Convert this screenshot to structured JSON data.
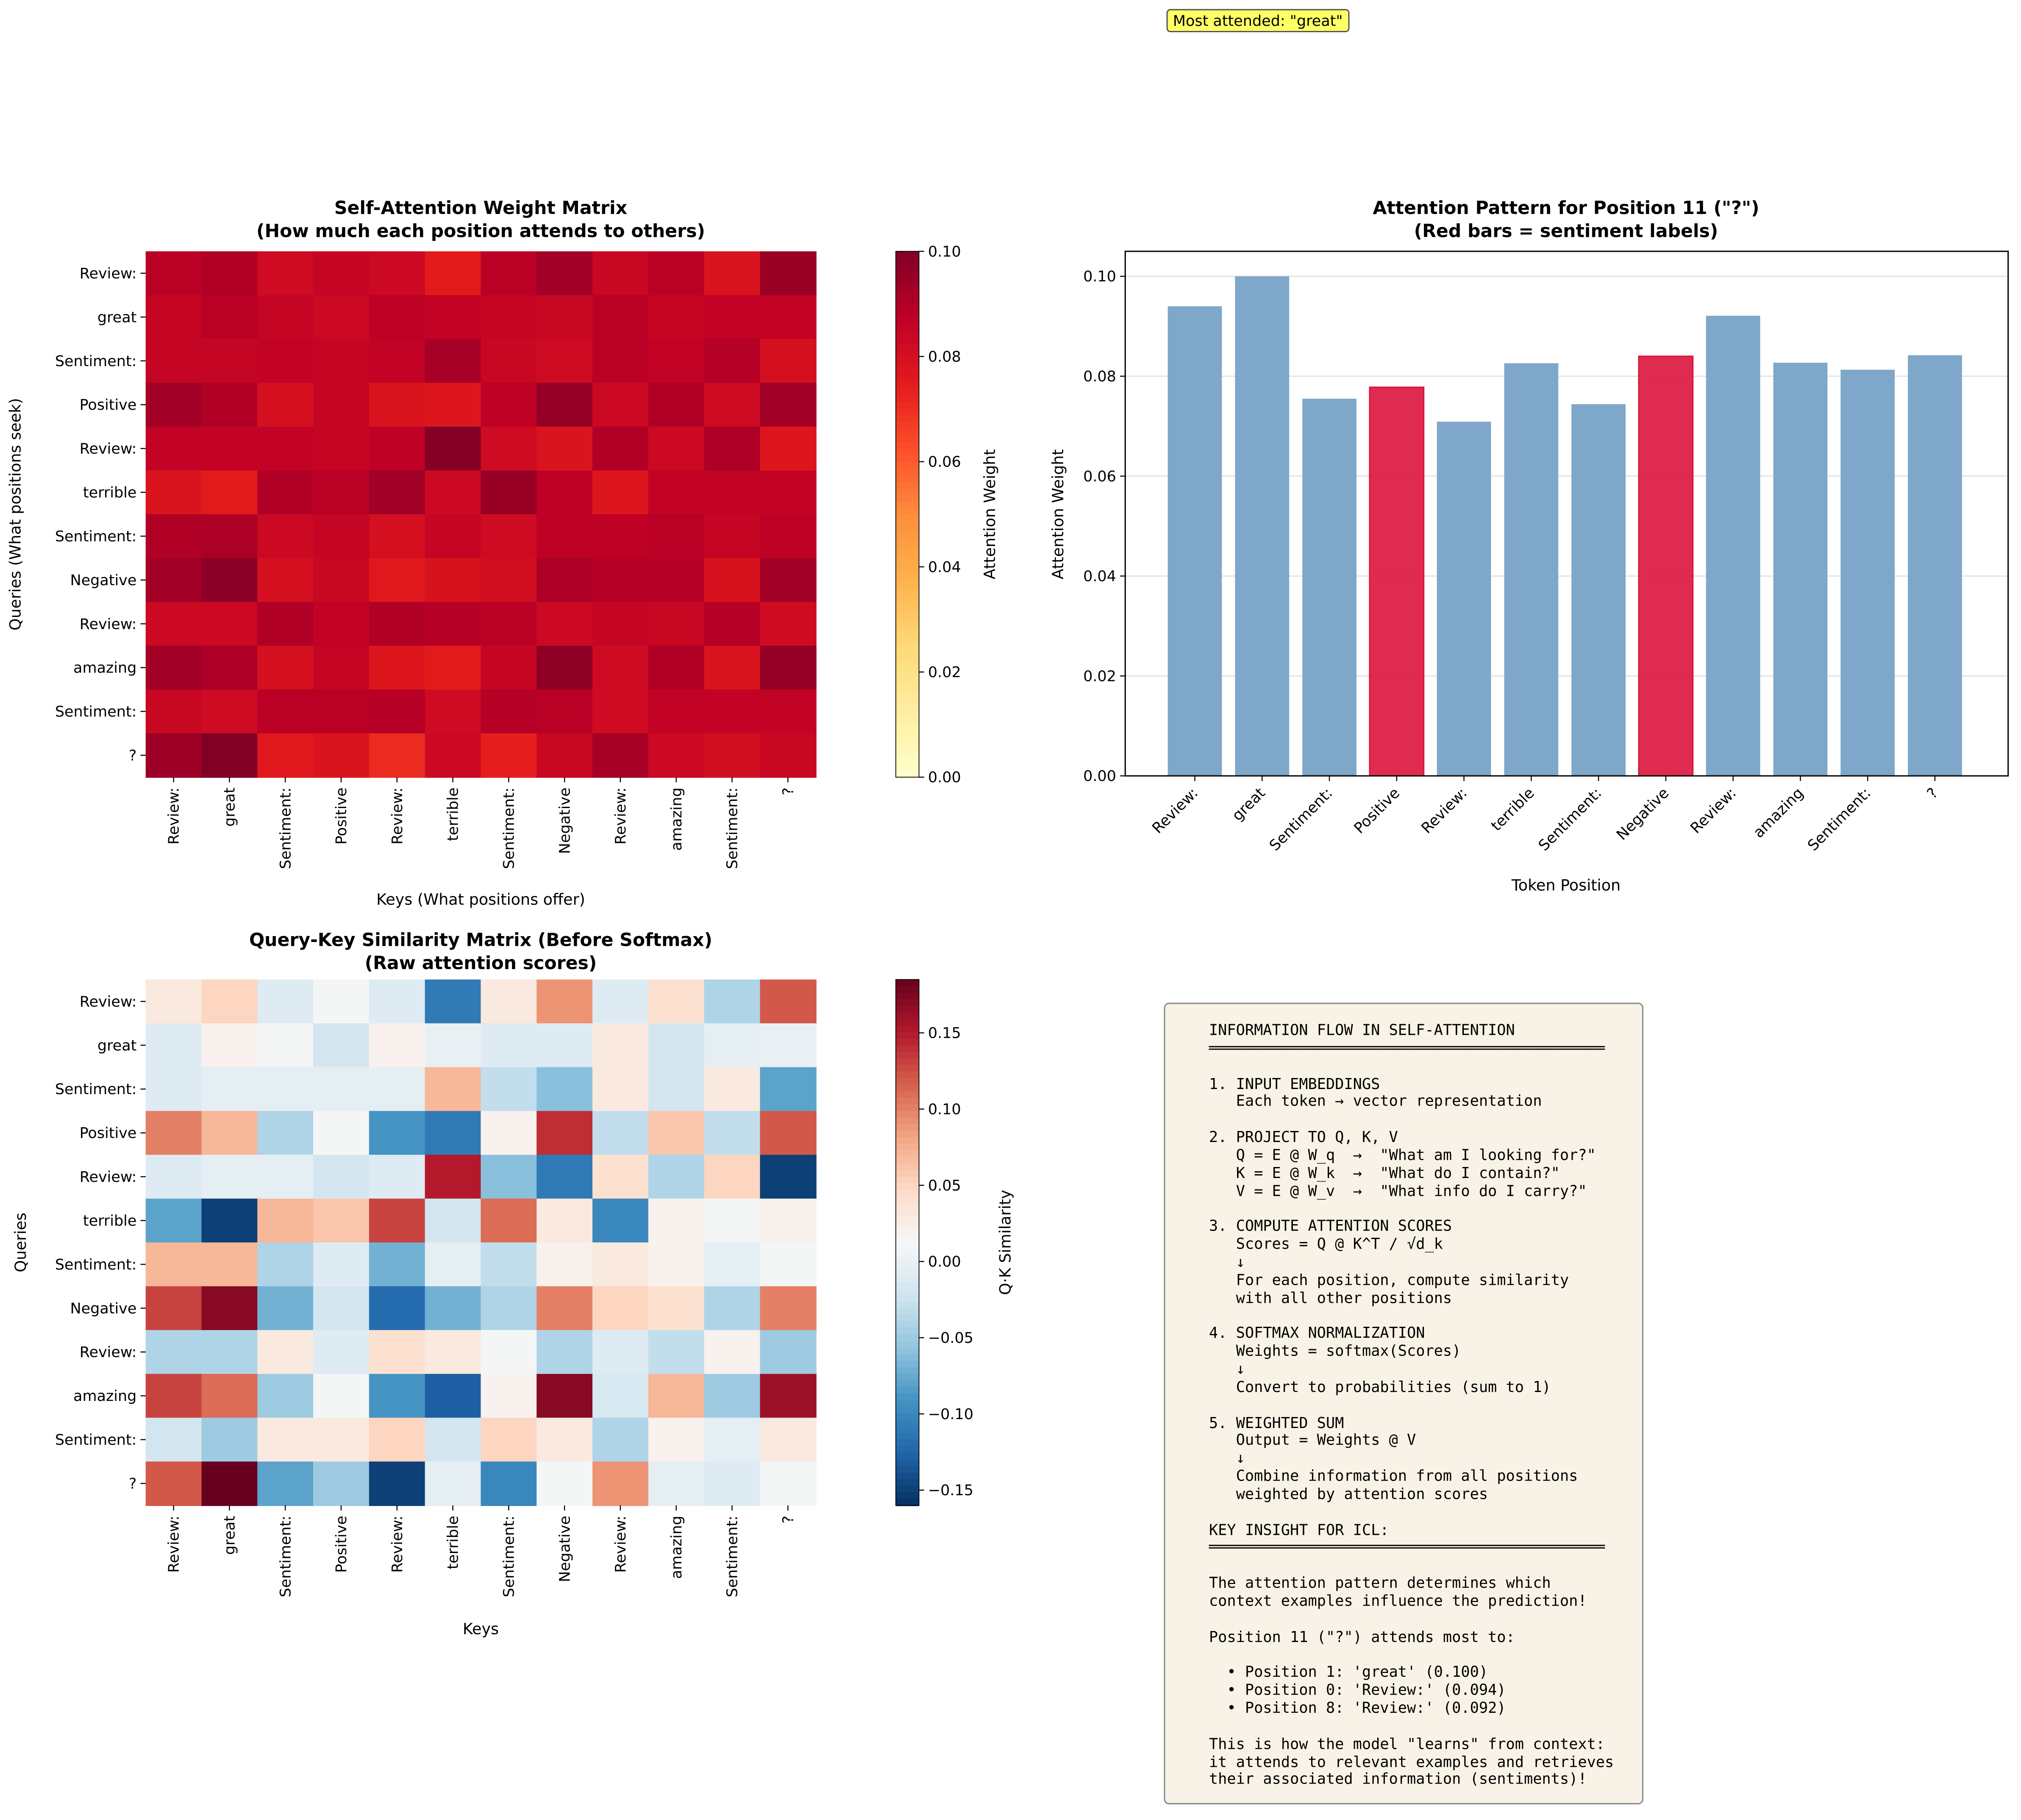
{
  "tokens": [
    "Review:",
    "great",
    "Sentiment:",
    "Positive",
    "Review:",
    "terrible",
    "Sentiment:",
    "Negative",
    "Review:",
    "amazing",
    "Sentiment:",
    "?"
  ],
  "annotation": "Most attended: \"great\"",
  "colors": {
    "bar_default": "#7ea7ca",
    "bar_sentiment": "#dc143c",
    "textbox_bg": "#f8f3e6",
    "annotation_bg": "#ffff66"
  },
  "chart_data": [
    {
      "type": "heatmap",
      "title": "Self-Attention Weight Matrix",
      "subtitle": "(How much each position attends to others)",
      "xlabel": "Keys (What positions offer)",
      "ylabel": "Queries (What positions seek)",
      "colorbar_label": "Attention Weight",
      "colormap": "YlOrRd",
      "vmin": 0.0,
      "vmax": 0.1,
      "colorbar_ticks": [
        "0.00",
        "0.02",
        "0.04",
        "0.06",
        "0.08",
        "0.10"
      ],
      "values": [
        [
          0.088,
          0.09,
          0.082,
          0.085,
          0.083,
          0.075,
          0.088,
          0.093,
          0.084,
          0.088,
          0.078,
          0.095
        ],
        [
          0.085,
          0.088,
          0.085,
          0.083,
          0.087,
          0.086,
          0.085,
          0.084,
          0.088,
          0.085,
          0.086,
          0.086
        ],
        [
          0.085,
          0.085,
          0.086,
          0.085,
          0.086,
          0.092,
          0.084,
          0.082,
          0.088,
          0.086,
          0.089,
          0.08
        ],
        [
          0.093,
          0.09,
          0.08,
          0.085,
          0.078,
          0.077,
          0.087,
          0.096,
          0.083,
          0.09,
          0.082,
          0.093
        ],
        [
          0.086,
          0.086,
          0.086,
          0.085,
          0.087,
          0.099,
          0.082,
          0.078,
          0.09,
          0.083,
          0.091,
          0.077
        ],
        [
          0.078,
          0.075,
          0.09,
          0.088,
          0.093,
          0.083,
          0.095,
          0.087,
          0.077,
          0.086,
          0.086,
          0.086
        ],
        [
          0.09,
          0.091,
          0.083,
          0.085,
          0.08,
          0.085,
          0.082,
          0.087,
          0.087,
          0.088,
          0.085,
          0.087
        ],
        [
          0.093,
          0.098,
          0.08,
          0.084,
          0.076,
          0.079,
          0.081,
          0.091,
          0.089,
          0.089,
          0.079,
          0.093
        ],
        [
          0.083,
          0.083,
          0.09,
          0.086,
          0.09,
          0.089,
          0.088,
          0.083,
          0.085,
          0.084,
          0.089,
          0.082
        ],
        [
          0.093,
          0.091,
          0.08,
          0.085,
          0.077,
          0.075,
          0.085,
          0.097,
          0.082,
          0.09,
          0.078,
          0.096
        ],
        [
          0.084,
          0.082,
          0.088,
          0.088,
          0.089,
          0.082,
          0.089,
          0.088,
          0.082,
          0.086,
          0.086,
          0.086
        ],
        [
          0.094,
          0.1,
          0.076,
          0.078,
          0.071,
          0.083,
          0.074,
          0.084,
          0.092,
          0.083,
          0.081,
          0.084
        ]
      ]
    },
    {
      "type": "bar",
      "title": "Attention Pattern for Position 11 (\"?\")",
      "subtitle": "(Red bars = sentiment labels)",
      "xlabel": "Token Position",
      "ylabel": "Attention Weight",
      "ylim": [
        0,
        0.105
      ],
      "yticks": [
        "0.00",
        "0.02",
        "0.04",
        "0.06",
        "0.08",
        "0.10"
      ],
      "grid": "y",
      "values": [
        0.094,
        0.1,
        0.0755,
        0.0778,
        0.0709,
        0.0826,
        0.0744,
        0.084,
        0.0921,
        0.0827,
        0.0813,
        0.0842
      ],
      "highlighted": [
        3,
        7
      ]
    },
    {
      "type": "heatmap",
      "title": "Query-Key Similarity Matrix (Before Softmax)",
      "subtitle": "(Raw attention scores)",
      "xlabel": "Keys",
      "ylabel": "Queries",
      "colorbar_label": "Q·K Similarity",
      "colormap": "RdBu_r",
      "vmin": -0.16,
      "vmax": 0.185,
      "colorbar_ticks": [
        "−0.15",
        "−0.10",
        "−0.05",
        "0.00",
        "0.05",
        "0.10",
        "0.15"
      ],
      "values": [
        [
          0.03,
          0.05,
          -0.01,
          0.01,
          -0.01,
          -0.11,
          0.03,
          0.09,
          -0.01,
          0.04,
          -0.04,
          0.12
        ],
        [
          -0.01,
          0.02,
          0.01,
          -0.02,
          0.02,
          0.0,
          -0.01,
          -0.01,
          0.03,
          -0.02,
          -0.005,
          0.0
        ],
        [
          -0.01,
          -0.005,
          -0.005,
          -0.005,
          -0.005,
          0.07,
          -0.03,
          -0.06,
          0.03,
          -0.02,
          0.03,
          -0.08
        ],
        [
          0.1,
          0.07,
          -0.04,
          0.01,
          -0.09,
          -0.11,
          0.02,
          0.14,
          -0.03,
          0.06,
          -0.03,
          0.12
        ],
        [
          -0.01,
          -0.005,
          -0.005,
          -0.02,
          -0.01,
          0.15,
          -0.06,
          -0.11,
          0.04,
          -0.04,
          0.05,
          -0.15
        ],
        [
          -0.08,
          -0.15,
          0.07,
          0.06,
          0.13,
          -0.02,
          0.11,
          0.03,
          -0.1,
          0.02,
          0.01,
          0.02
        ],
        [
          0.07,
          0.07,
          -0.04,
          -0.01,
          -0.07,
          -0.005,
          -0.03,
          0.02,
          0.03,
          0.02,
          -0.005,
          0.01
        ],
        [
          0.13,
          0.17,
          -0.07,
          -0.02,
          -0.12,
          -0.07,
          -0.04,
          0.1,
          0.05,
          0.04,
          -0.04,
          0.1
        ],
        [
          -0.04,
          -0.04,
          0.03,
          -0.01,
          0.04,
          0.03,
          0.01,
          -0.04,
          -0.01,
          -0.03,
          0.02,
          -0.05
        ],
        [
          0.13,
          0.11,
          -0.05,
          0.01,
          -0.09,
          -0.13,
          0.02,
          0.17,
          -0.015,
          0.07,
          -0.05,
          0.16
        ],
        [
          -0.02,
          -0.05,
          0.03,
          0.03,
          0.05,
          -0.02,
          0.05,
          0.03,
          -0.04,
          0.02,
          -0.005,
          0.03
        ],
        [
          0.12,
          0.185,
          -0.08,
          -0.05,
          -0.15,
          -0.005,
          -0.1,
          0.01,
          0.09,
          -0.005,
          -0.01,
          0.01
        ]
      ]
    }
  ],
  "textbox": {
    "lines": [
      "INFORMATION FLOW IN SELF-ATTENTION",
      "════════════════════════════════════════════",
      "",
      "1. INPUT EMBEDDINGS",
      "   Each token → vector representation",
      "",
      "2. PROJECT TO Q, K, V",
      "   Q = E @ W_q  →  \"What am I looking for?\"",
      "   K = E @ W_k  →  \"What do I contain?\"",
      "   V = E @ W_v  →  \"What info do I carry?\"",
      "",
      "3. COMPUTE ATTENTION SCORES",
      "   Scores = Q @ K^T / √d_k",
      "   ↓",
      "   For each position, compute similarity",
      "   with all other positions",
      "",
      "4. SOFTMAX NORMALIZATION",
      "   Weights = softmax(Scores)",
      "   ↓",
      "   Convert to probabilities (sum to 1)",
      "",
      "5. WEIGHTED SUM",
      "   Output = Weights @ V",
      "   ↓",
      "   Combine information from all positions",
      "   weighted by attention scores",
      "",
      "KEY INSIGHT FOR ICL:",
      "════════════════════════════════════════════",
      "",
      "The attention pattern determines which",
      "context examples influence the prediction!",
      "",
      "Position 11 (\"?\") attends most to:",
      "",
      "  • Position 1: 'great' (0.100)",
      "  • Position 0: 'Review:' (0.094)",
      "  • Position 8: 'Review:' (0.092)",
      "",
      "This is how the model \"learns\" from context:",
      "it attends to relevant examples and retrieves",
      "their associated information (sentiments)!"
    ]
  }
}
